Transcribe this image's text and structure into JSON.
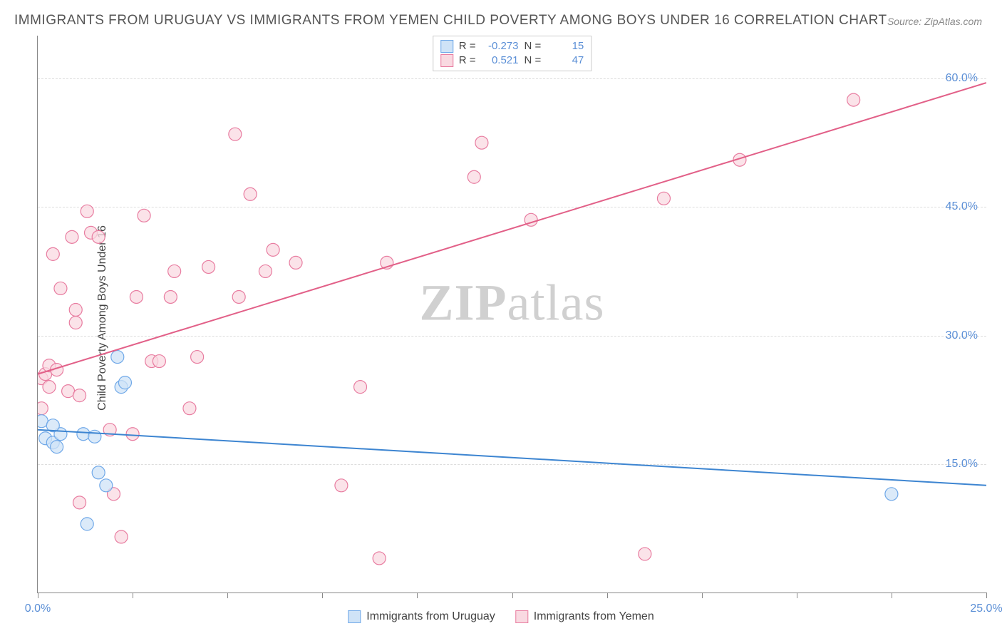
{
  "title": "IMMIGRANTS FROM URUGUAY VS IMMIGRANTS FROM YEMEN CHILD POVERTY AMONG BOYS UNDER 16 CORRELATION CHART",
  "source_label": "Source:",
  "source_value": "ZipAtlas.com",
  "ylabel": "Child Poverty Among Boys Under 16",
  "watermark_bold": "ZIP",
  "watermark_rest": "atlas",
  "chart": {
    "type": "scatter",
    "xlim": [
      0,
      25
    ],
    "ylim": [
      0,
      65
    ],
    "x_ticks": [
      0,
      2.5,
      5,
      7.5,
      10,
      12.5,
      15,
      17.5,
      20,
      22.5,
      25
    ],
    "x_tick_labels": {
      "0": "0.0%",
      "25": "25.0%"
    },
    "y_gridlines": [
      15,
      30,
      45,
      60
    ],
    "y_tick_labels": {
      "15": "15.0%",
      "30": "30.0%",
      "45": "45.0%",
      "60": "60.0%"
    },
    "background_color": "#ffffff",
    "grid_color": "#dddddd",
    "axis_color": "#888888",
    "label_color": "#5b8fd6",
    "series": [
      {
        "name": "Immigrants from Uruguay",
        "color_fill": "#cfe3f7",
        "color_stroke": "#6fa8e8",
        "marker_radius": 9,
        "R": "-0.273",
        "N": "15",
        "regression": {
          "x1": 0,
          "y1": 19.0,
          "x2": 25,
          "y2": 12.5,
          "color": "#3d85d1",
          "width": 2
        },
        "points": [
          [
            0.1,
            20.0
          ],
          [
            0.2,
            18.0
          ],
          [
            0.4,
            17.5
          ],
          [
            0.5,
            17.0
          ],
          [
            0.6,
            18.5
          ],
          [
            1.2,
            18.5
          ],
          [
            1.5,
            18.2
          ],
          [
            2.1,
            27.5
          ],
          [
            2.2,
            24.0
          ],
          [
            2.3,
            24.5
          ],
          [
            1.6,
            14.0
          ],
          [
            1.8,
            12.5
          ],
          [
            1.3,
            8.0
          ],
          [
            0.4,
            19.5
          ],
          [
            22.5,
            11.5
          ]
        ]
      },
      {
        "name": "Immigrants from Yemen",
        "color_fill": "#f9d9e1",
        "color_stroke": "#e87ca0",
        "marker_radius": 9,
        "R": "0.521",
        "N": "47",
        "regression": {
          "x1": 0,
          "y1": 25.5,
          "x2": 25,
          "y2": 59.5,
          "color": "#e26088",
          "width": 2
        },
        "points": [
          [
            0.1,
            21.5
          ],
          [
            0.1,
            25.0
          ],
          [
            0.2,
            25.5
          ],
          [
            0.3,
            24.0
          ],
          [
            0.3,
            26.5
          ],
          [
            0.4,
            39.5
          ],
          [
            0.6,
            35.5
          ],
          [
            0.8,
            23.5
          ],
          [
            0.9,
            41.5
          ],
          [
            1.0,
            31.5
          ],
          [
            1.0,
            33.0
          ],
          [
            1.1,
            10.5
          ],
          [
            1.1,
            23.0
          ],
          [
            1.3,
            44.5
          ],
          [
            1.4,
            42.0
          ],
          [
            1.6,
            41.5
          ],
          [
            1.9,
            19.0
          ],
          [
            2.0,
            11.5
          ],
          [
            2.2,
            6.5
          ],
          [
            2.5,
            18.5
          ],
          [
            2.6,
            34.5
          ],
          [
            2.8,
            44.0
          ],
          [
            3.0,
            27.0
          ],
          [
            3.2,
            27.0
          ],
          [
            3.5,
            34.5
          ],
          [
            3.6,
            37.5
          ],
          [
            4.0,
            21.5
          ],
          [
            4.2,
            27.5
          ],
          [
            4.5,
            38.0
          ],
          [
            5.2,
            53.5
          ],
          [
            5.3,
            34.5
          ],
          [
            5.6,
            46.5
          ],
          [
            6.0,
            37.5
          ],
          [
            6.2,
            40.0
          ],
          [
            6.8,
            38.5
          ],
          [
            8.0,
            12.5
          ],
          [
            8.5,
            24.0
          ],
          [
            9.0,
            4.0
          ],
          [
            9.2,
            38.5
          ],
          [
            11.5,
            48.5
          ],
          [
            11.7,
            52.5
          ],
          [
            13.0,
            43.5
          ],
          [
            16.5,
            46.0
          ],
          [
            18.5,
            50.5
          ],
          [
            21.5,
            57.5
          ],
          [
            16.0,
            4.5
          ],
          [
            0.5,
            26.0
          ]
        ]
      }
    ]
  },
  "legend_top": {
    "R_label": "R =",
    "N_label": "N ="
  }
}
